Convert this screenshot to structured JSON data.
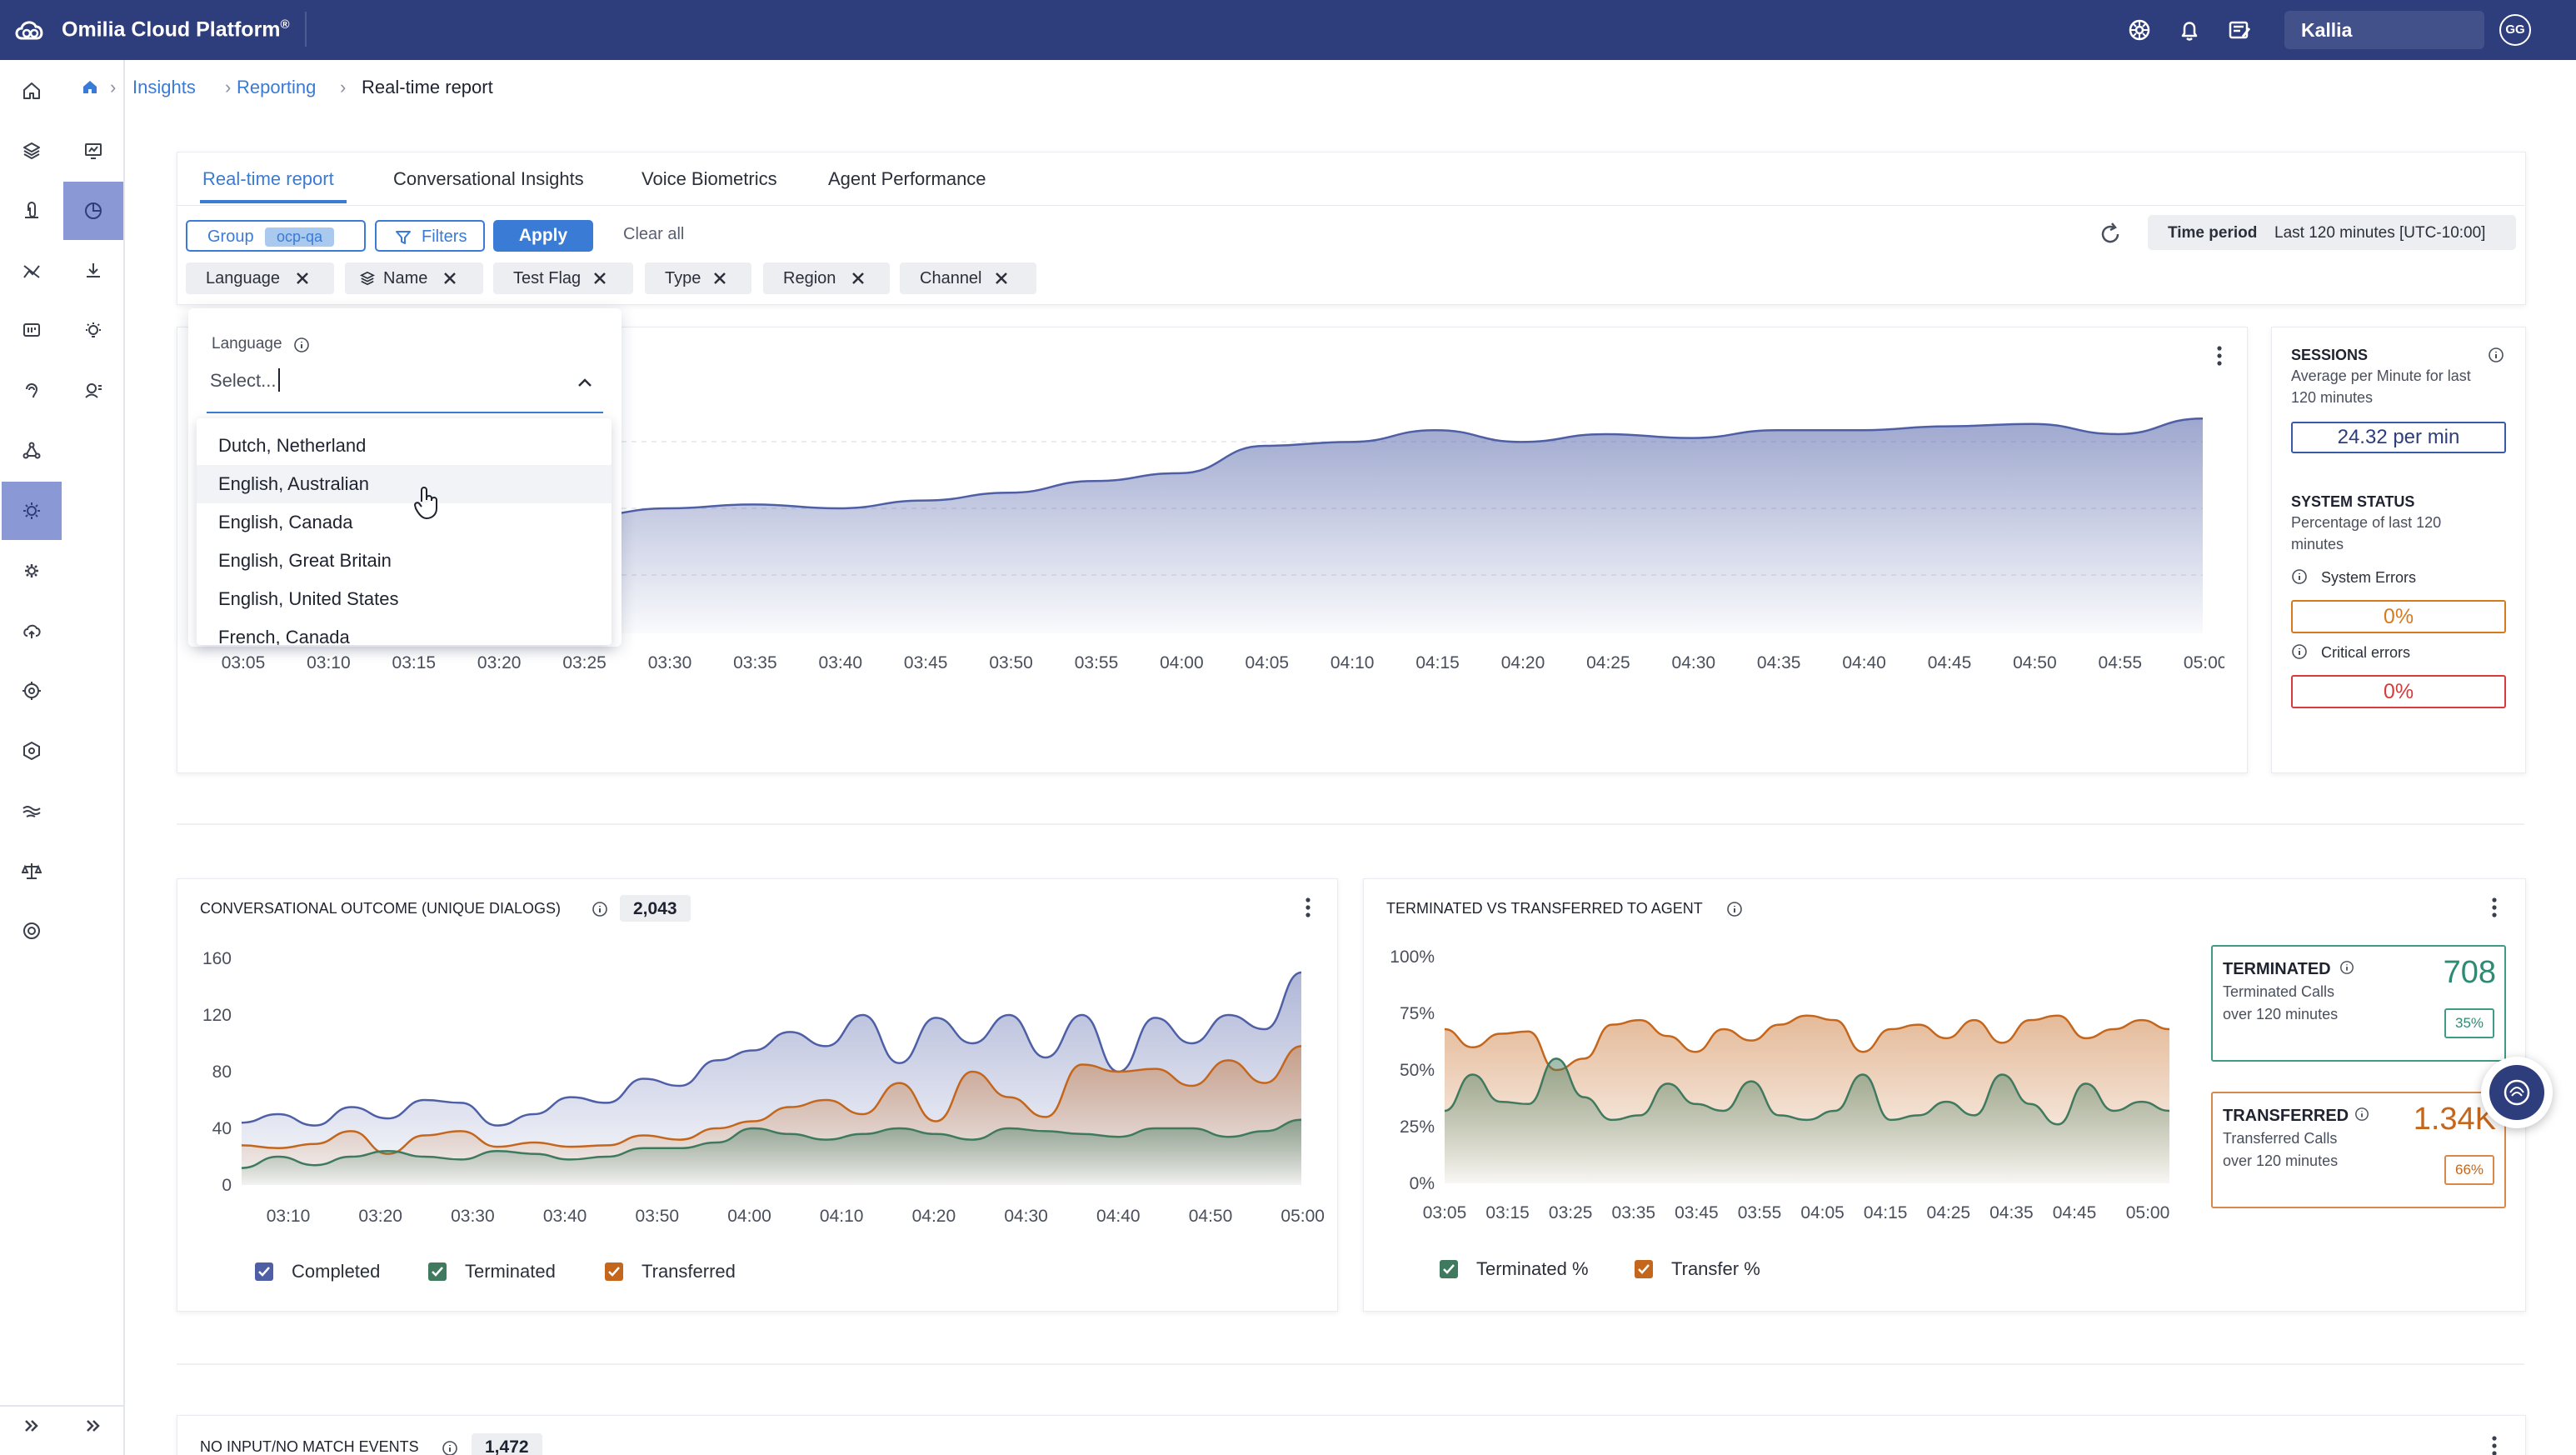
{
  "topbar": {
    "brand": "Omilia Cloud Platform",
    "brand_mark": "®",
    "tenant": "Kallia",
    "avatar_initials": "GG",
    "icons": [
      "settings-icon",
      "bell-icon",
      "notes-icon"
    ]
  },
  "breadcrumb": {
    "items": [
      "Insights",
      "Reporting"
    ],
    "current": "Real-time report"
  },
  "tabs": [
    {
      "label": "Real-time report",
      "active": true
    },
    {
      "label": "Conversational Insights",
      "active": false
    },
    {
      "label": "Voice Biometrics",
      "active": false
    },
    {
      "label": "Agent Performance",
      "active": false
    }
  ],
  "toolbar": {
    "group_label": "Group",
    "group_value": "ocp-qa",
    "filters_label": "Filters",
    "apply_label": "Apply",
    "clear_label": "Clear all",
    "time_period_label": "Time period",
    "time_period_value": "Last 120 minutes [UTC-10:00]"
  },
  "filter_chips": [
    "Language",
    "Name",
    "Test Flag",
    "Type",
    "Region",
    "Channel"
  ],
  "language_dropdown": {
    "label": "Language",
    "placeholder": "Select...",
    "options": [
      "Dutch, Netherland",
      "English, Australian",
      "English, Canada",
      "English, Great Britain",
      "English, United States",
      "French, Canada"
    ],
    "highlighted": "English, Australian"
  },
  "sessions": {
    "title": "SESSIONS",
    "subtitle_1": "Average per Minute for last",
    "subtitle_2": "120 minutes",
    "value": "24.32 per min"
  },
  "system_status": {
    "title": "SYSTEM STATUS",
    "subtitle_1": "Percentage of last 120",
    "subtitle_2": "minutes",
    "system_errors_label": "System Errors",
    "system_errors_value": "0%",
    "critical_errors_label": "Critical errors",
    "critical_errors_value": "0%"
  },
  "outcome_panel": {
    "title": "CONVERSATIONAL OUTCOME (UNIQUE DIALOGS)",
    "total": "2,043",
    "legend": [
      "Completed",
      "Terminated",
      "Transferred"
    ]
  },
  "term_panel": {
    "title": "TERMINATED VS TRANSFERRED TO AGENT",
    "legend": [
      "Terminated %",
      "Transfer %"
    ],
    "terminated": {
      "label": "TERMINATED",
      "sub_1": "Terminated Calls",
      "sub_2": "over 120 minutes",
      "value": "708",
      "pct": "35%"
    },
    "transferred": {
      "label": "TRANSFERRED",
      "sub_1": "Transferred Calls",
      "sub_2": "over 120 minutes",
      "value": "1.34K",
      "pct": "66%"
    }
  },
  "noinput_panel": {
    "title": "NO INPUT/NO MATCH EVENTS",
    "total": "1,472"
  },
  "colors": {
    "primary": "#3a7bd5",
    "topbar": "#2e3d7b",
    "completed": "#4e5fa6",
    "terminated": "#3f7a5e",
    "transferred": "#c4661c",
    "error": "#d93a3a"
  },
  "chart_data": [
    {
      "type": "area",
      "name": "sessions",
      "x": [
        "03:05",
        "03:10",
        "03:15",
        "03:20",
        "03:25",
        "03:30",
        "03:35",
        "03:40",
        "03:45",
        "03:50",
        "03:55",
        "04:00",
        "04:05",
        "04:10",
        "04:15",
        "04:20",
        "04:25",
        "04:30",
        "04:35",
        "04:40",
        "04:45",
        "04:50",
        "04:55",
        "05:00"
      ],
      "values": [
        12,
        12.5,
        13.5,
        14,
        15,
        16,
        16.5,
        16,
        17,
        18,
        19.5,
        20.5,
        24,
        24.5,
        26,
        24.5,
        25.5,
        25,
        26,
        26,
        26.5,
        26.8,
        25.5,
        27.5
      ],
      "ylim": [
        0,
        32
      ]
    },
    {
      "type": "area",
      "x_ticks": [
        "03:10",
        "03:20",
        "03:30",
        "03:40",
        "03:50",
        "04:00",
        "04:10",
        "04:20",
        "04:30",
        "04:40",
        "04:50",
        "05:00"
      ],
      "y_ticks": [
        0,
        40,
        80,
        120,
        160
      ],
      "ylim": [
        0,
        160
      ],
      "series": [
        {
          "name": "Completed",
          "values": [
            44,
            50,
            42,
            55,
            47,
            60,
            58,
            42,
            50,
            62,
            58,
            75,
            70,
            88,
            95,
            108,
            98,
            120,
            86,
            118,
            100,
            120,
            90,
            120,
            80,
            118,
            100,
            120,
            110,
            150
          ]
        },
        {
          "name": "Terminated",
          "values": [
            28,
            26,
            29,
            38,
            22,
            35,
            38,
            27,
            30,
            27,
            28,
            35,
            32,
            40,
            45,
            55,
            60,
            50,
            72,
            45,
            80,
            62,
            48,
            85,
            80,
            82,
            70,
            88,
            72,
            98
          ]
        },
        {
          "name": "Transferred",
          "values": [
            12,
            20,
            14,
            20,
            24,
            20,
            18,
            24,
            22,
            18,
            20,
            26,
            26,
            30,
            40,
            36,
            32,
            36,
            40,
            36,
            32,
            40,
            38,
            36,
            34,
            40,
            40,
            34,
            38,
            46
          ]
        }
      ]
    },
    {
      "type": "area",
      "x_ticks": [
        "03:05",
        "03:15",
        "03:25",
        "03:35",
        "03:45",
        "03:55",
        "04:05",
        "04:15",
        "04:25",
        "04:35",
        "04:45",
        "05:00"
      ],
      "y_ticks": [
        "0%",
        "25%",
        "50%",
        "75%",
        "100%"
      ],
      "ylim": [
        0,
        100
      ],
      "series": [
        {
          "name": "Transfer %",
          "values": [
            68,
            60,
            66,
            67,
            50,
            55,
            70,
            72,
            65,
            58,
            68,
            63,
            70,
            74,
            72,
            58,
            68,
            70,
            64,
            72,
            62,
            72,
            74,
            64,
            68,
            72,
            68
          ]
        },
        {
          "name": "Terminated %",
          "values": [
            32,
            48,
            36,
            35,
            55,
            38,
            28,
            30,
            44,
            35,
            32,
            45,
            30,
            28,
            32,
            48,
            28,
            30,
            36,
            30,
            48,
            35,
            26,
            44,
            32,
            36,
            32
          ]
        }
      ]
    }
  ]
}
